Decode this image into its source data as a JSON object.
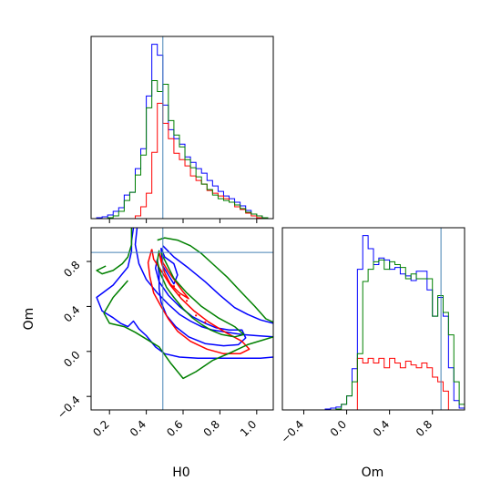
{
  "chart_data": {
    "type": "corner",
    "parameters": [
      "H0",
      "Om"
    ],
    "truth": {
      "H0": 0.49,
      "Om": 0.88
    },
    "truth_color": "#4682b4",
    "series": [
      {
        "color": "#0000ff"
      },
      {
        "color": "#ff0000"
      },
      {
        "color": "#008000"
      }
    ],
    "panels": [
      {
        "id": "hist-H0",
        "kind": "histogram",
        "xlim": [
          0.1,
          1.09
        ],
        "ticks": [
          0.2,
          0.4,
          0.6,
          0.8,
          1.0
        ],
        "tick_labels": [],
        "bin_edges": [
          0.1,
          0.13,
          0.16,
          0.19,
          0.22,
          0.25,
          0.28,
          0.31,
          0.34,
          0.37,
          0.4,
          0.43,
          0.46,
          0.49,
          0.52,
          0.55,
          0.58,
          0.61,
          0.64,
          0.67,
          0.7,
          0.73,
          0.76,
          0.79,
          0.82,
          0.85,
          0.88,
          0.91,
          0.94,
          0.97,
          1.0,
          1.03,
          1.06,
          1.09
        ],
        "counts": [
          [
            0,
            1,
            2,
            4,
            8,
            12,
            26,
            29,
            55,
            77,
            135,
            192,
            180,
            125,
            98,
            88,
            82,
            68,
            62,
            55,
            50,
            42,
            36,
            30,
            25,
            22,
            18,
            14,
            9,
            5,
            3,
            1,
            0
          ],
          [
            0,
            0,
            0,
            0,
            0,
            0,
            0,
            0,
            3,
            13,
            28,
            73,
            127,
            105,
            88,
            72,
            65,
            58,
            47,
            42,
            38,
            31,
            28,
            25,
            22,
            18,
            13,
            10,
            6,
            3,
            1,
            0,
            0
          ],
          [
            0,
            0,
            0,
            1,
            3,
            8,
            20,
            29,
            48,
            70,
            122,
            152,
            140,
            148,
            108,
            92,
            79,
            65,
            56,
            46,
            38,
            32,
            26,
            22,
            20,
            18,
            15,
            11,
            7,
            5,
            3,
            1,
            0
          ]
        ]
      },
      {
        "id": "contour-H0-Om",
        "kind": "contour",
        "xlim": [
          0.1,
          1.09
        ],
        "ylim": [
          -0.52,
          1.1
        ],
        "xticks": [
          0.2,
          0.4,
          0.6,
          0.8,
          1.0
        ],
        "xtick_labels": [
          "0.2",
          "0.4",
          "0.6",
          "0.8",
          "1.0"
        ],
        "yticks": [
          -0.4,
          0.0,
          0.4,
          0.8
        ],
        "ytick_labels": [
          "−0.4",
          "0.0",
          "0.4",
          "0.8"
        ],
        "xlabel": "H0",
        "ylabel": "Om",
        "contours": [
          {
            "series": 0,
            "points": [
              [
                0.33,
                1.1
              ],
              [
                0.32,
                0.98
              ],
              [
                0.32,
                0.89
              ],
              [
                0.3,
                0.75
              ],
              [
                0.22,
                0.59
              ],
              [
                0.13,
                0.48
              ],
              [
                0.16,
                0.36
              ],
              [
                0.22,
                0.3
              ],
              [
                0.26,
                0.25
              ],
              [
                0.3,
                0.22
              ],
              [
                0.33,
                0.27
              ],
              [
                0.36,
                0.2
              ],
              [
                0.4,
                0.14
              ],
              [
                0.45,
                0.04
              ],
              [
                0.5,
                -0.02
              ],
              [
                0.58,
                -0.05
              ],
              [
                0.68,
                -0.06
              ],
              [
                0.8,
                -0.06
              ],
              [
                0.92,
                -0.06
              ],
              [
                1.02,
                -0.06
              ],
              [
                1.09,
                -0.05
              ]
            ]
          },
          {
            "series": 0,
            "points": [
              [
                0.35,
                1.1
              ],
              [
                0.34,
                0.95
              ],
              [
                0.36,
                0.78
              ],
              [
                0.4,
                0.64
              ],
              [
                0.46,
                0.52
              ],
              [
                0.52,
                0.42
              ],
              [
                0.58,
                0.33
              ],
              [
                0.64,
                0.27
              ],
              [
                0.7,
                0.22
              ],
              [
                0.76,
                0.19
              ],
              [
                0.84,
                0.17
              ],
              [
                0.92,
                0.15
              ],
              [
                1.0,
                0.14
              ],
              [
                1.09,
                0.13
              ]
            ]
          },
          {
            "series": 0,
            "points": [
              [
                0.49,
                0.94
              ],
              [
                0.55,
                0.84
              ],
              [
                0.63,
                0.74
              ],
              [
                0.72,
                0.62
              ],
              [
                0.8,
                0.5
              ],
              [
                0.88,
                0.39
              ],
              [
                0.95,
                0.33
              ],
              [
                1.02,
                0.28
              ],
              [
                1.09,
                0.25
              ]
            ]
          },
          {
            "series": 0,
            "points": [
              [
                0.46,
                0.82
              ],
              [
                0.45,
                0.74
              ],
              [
                0.47,
                0.62
              ],
              [
                0.52,
                0.5
              ],
              [
                0.58,
                0.4
              ],
              [
                0.65,
                0.31
              ],
              [
                0.72,
                0.25
              ],
              [
                0.78,
                0.21
              ],
              [
                0.85,
                0.19
              ],
              [
                0.92,
                0.19
              ],
              [
                0.94,
                0.12
              ],
              [
                0.9,
                0.06
              ],
              [
                0.82,
                0.05
              ],
              [
                0.72,
                0.07
              ],
              [
                0.63,
                0.13
              ],
              [
                0.56,
                0.22
              ],
              [
                0.51,
                0.32
              ],
              [
                0.48,
                0.44
              ],
              [
                0.47,
                0.56
              ],
              [
                0.47,
                0.68
              ],
              [
                0.46,
                0.82
              ]
            ]
          },
          {
            "series": 0,
            "points": [
              [
                0.48,
                0.92
              ],
              [
                0.5,
                0.84
              ],
              [
                0.55,
                0.78
              ],
              [
                0.57,
                0.68
              ],
              [
                0.55,
                0.6
              ],
              [
                0.52,
                0.68
              ],
              [
                0.49,
                0.76
              ],
              [
                0.48,
                0.92
              ]
            ]
          },
          {
            "series": 1,
            "points": [
              [
                0.43,
                0.91
              ],
              [
                0.44,
                0.82
              ],
              [
                0.48,
                0.72
              ],
              [
                0.53,
                0.59
              ],
              [
                0.59,
                0.47
              ],
              [
                0.66,
                0.36
              ],
              [
                0.74,
                0.26
              ],
              [
                0.83,
                0.17
              ],
              [
                0.92,
                0.09
              ],
              [
                0.96,
                0.02
              ],
              [
                0.91,
                -0.02
              ],
              [
                0.82,
                -0.02
              ],
              [
                0.73,
                0.02
              ],
              [
                0.64,
                0.09
              ],
              [
                0.57,
                0.18
              ],
              [
                0.52,
                0.29
              ],
              [
                0.48,
                0.4
              ],
              [
                0.44,
                0.52
              ],
              [
                0.42,
                0.66
              ],
              [
                0.41,
                0.79
              ],
              [
                0.43,
                0.91
              ]
            ]
          },
          {
            "series": 1,
            "points": [
              [
                0.47,
                0.88
              ],
              [
                0.49,
                0.79
              ],
              [
                0.52,
                0.71
              ],
              [
                0.56,
                0.62
              ],
              [
                0.6,
                0.53
              ],
              [
                0.63,
                0.47
              ],
              [
                0.58,
                0.52
              ],
              [
                0.53,
                0.6
              ],
              [
                0.5,
                0.7
              ],
              [
                0.48,
                0.8
              ],
              [
                0.47,
                0.88
              ]
            ]
          },
          {
            "series": 2,
            "points": [
              [
                0.18,
                0.76
              ],
              [
                0.13,
                0.72
              ],
              [
                0.16,
                0.69
              ],
              [
                0.22,
                0.72
              ],
              [
                0.27,
                0.78
              ],
              [
                0.3,
                0.84
              ],
              [
                0.32,
                0.95
              ],
              [
                0.32,
                1.1
              ]
            ]
          },
          {
            "series": 2,
            "points": [
              [
                0.3,
                0.63
              ],
              [
                0.22,
                0.48
              ],
              [
                0.17,
                0.34
              ],
              [
                0.2,
                0.25
              ],
              [
                0.28,
                0.22
              ],
              [
                0.34,
                0.17
              ],
              [
                0.4,
                0.11
              ],
              [
                0.47,
                0.04
              ],
              [
                0.53,
                -0.1
              ],
              [
                0.6,
                -0.24
              ],
              [
                0.67,
                -0.18
              ],
              [
                0.76,
                -0.08
              ],
              [
                0.86,
                -0.01
              ],
              [
                0.95,
                0.06
              ],
              [
                1.03,
                0.1
              ],
              [
                1.09,
                0.13
              ]
            ]
          },
          {
            "series": 2,
            "points": [
              [
                0.46,
                0.99
              ],
              [
                0.5,
                1.01
              ],
              [
                0.57,
                0.99
              ],
              [
                0.64,
                0.94
              ],
              [
                0.7,
                0.87
              ],
              [
                0.76,
                0.78
              ],
              [
                0.84,
                0.66
              ],
              [
                0.92,
                0.52
              ],
              [
                0.99,
                0.4
              ],
              [
                1.05,
                0.29
              ],
              [
                1.09,
                0.26
              ]
            ]
          },
          {
            "series": 2,
            "points": [
              [
                0.47,
                0.9
              ],
              [
                0.46,
                0.8
              ],
              [
                0.48,
                0.68
              ],
              [
                0.51,
                0.57
              ],
              [
                0.55,
                0.48
              ],
              [
                0.6,
                0.38
              ],
              [
                0.65,
                0.3
              ],
              [
                0.7,
                0.24
              ],
              [
                0.75,
                0.19
              ],
              [
                0.81,
                0.15
              ],
              [
                0.88,
                0.13
              ],
              [
                0.93,
                0.15
              ],
              [
                0.88,
                0.22
              ],
              [
                0.79,
                0.3
              ],
              [
                0.7,
                0.4
              ],
              [
                0.62,
                0.52
              ],
              [
                0.55,
                0.65
              ],
              [
                0.51,
                0.78
              ],
              [
                0.48,
                0.88
              ]
            ]
          }
        ],
        "dots": [
          {
            "series": 1,
            "points": [
              [
                0.55,
                0.58
              ],
              [
                0.62,
                0.45
              ],
              [
                0.67,
                0.32
              ],
              [
                0.72,
                0.26
              ],
              [
                0.58,
                0.5
              ]
            ]
          }
        ]
      },
      {
        "id": "hist-Om",
        "kind": "histogram",
        "xlim": [
          -0.6,
          1.1
        ],
        "ticks": [
          -0.4,
          0.0,
          0.4,
          0.8
        ],
        "tick_labels": [
          "−0.4",
          "0.0",
          "0.4",
          "0.8"
        ],
        "xlabel": "Om",
        "bin_edges": [
          -0.6,
          -0.55,
          -0.5,
          -0.45,
          -0.4,
          -0.35,
          -0.3,
          -0.25,
          -0.2,
          -0.15,
          -0.1,
          -0.05,
          0.0,
          0.05,
          0.1,
          0.15,
          0.2,
          0.25,
          0.3,
          0.35,
          0.4,
          0.45,
          0.5,
          0.55,
          0.6,
          0.65,
          0.7,
          0.75,
          0.8,
          0.85,
          0.9,
          0.95,
          1.0,
          1.05,
          1.1
        ],
        "counts": [
          [
            0,
            0,
            0,
            0,
            0,
            0,
            0,
            0,
            1,
            2,
            3,
            6,
            15,
            44,
            150,
            186,
            172,
            155,
            162,
            160,
            150,
            152,
            145,
            143,
            138,
            148,
            148,
            128,
            100,
            120,
            100,
            45,
            10,
            2
          ],
          [
            0,
            0,
            0,
            0,
            0,
            0,
            0,
            0,
            0,
            0,
            0,
            0,
            0,
            0,
            55,
            50,
            55,
            50,
            55,
            45,
            55,
            50,
            45,
            52,
            48,
            45,
            50,
            45,
            35,
            30,
            20,
            0,
            0,
            0
          ],
          [
            0,
            0,
            0,
            0,
            0,
            0,
            0,
            0,
            0,
            0,
            1,
            6,
            15,
            30,
            60,
            137,
            150,
            158,
            160,
            150,
            158,
            155,
            152,
            140,
            145,
            140,
            140,
            140,
            100,
            122,
            104,
            80,
            30,
            6
          ]
        ]
      }
    ]
  }
}
